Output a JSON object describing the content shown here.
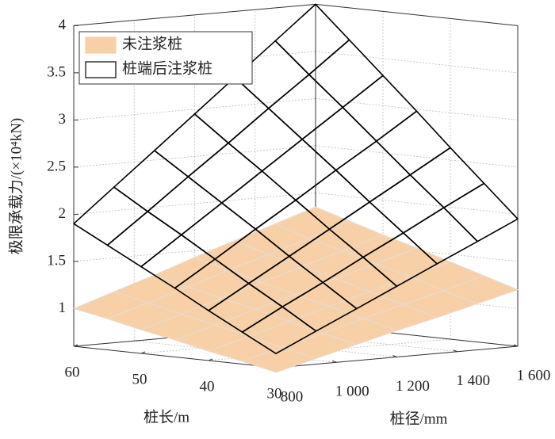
{
  "chart_data": {
    "type": "surface",
    "x_label": "桩径/mm",
    "y_label": "桩长/m",
    "z_label": "极限承载力/(×10⁴kN)",
    "x": [
      800,
      933,
      1067,
      1200,
      1333,
      1467,
      1600
    ],
    "y": [
      30,
      35,
      40,
      45,
      50,
      55,
      60
    ],
    "xlim": [
      800,
      1600
    ],
    "ylim": [
      30,
      60
    ],
    "zlim": [
      0.6,
      4
    ],
    "xticks": [
      800,
      {
        "value": 1000,
        "label": "1 000"
      },
      {
        "value": 1200,
        "label": "1 200"
      },
      {
        "value": 1400,
        "label": "1 400"
      },
      {
        "value": 1600,
        "label": "1 600"
      }
    ],
    "yticks": [
      30,
      40,
      50,
      60
    ],
    "zticks": [
      1,
      1.5,
      2,
      2.5,
      3,
      3.5,
      4
    ],
    "grid": true,
    "legend": "upper left",
    "series": [
      {
        "name": "未注浆桩",
        "style": "surface",
        "color": "#f8d0a8",
        "edge_color": "#e6dcd2",
        "z": [
          [
            0.55,
            0.66,
            0.77,
            0.88,
            0.98,
            1.09,
            1.2
          ],
          [
            0.63,
            0.74,
            0.85,
            0.97,
            1.08,
            1.19,
            1.31
          ],
          [
            0.7,
            0.82,
            0.94,
            1.06,
            1.18,
            1.3,
            1.42
          ],
          [
            0.78,
            0.9,
            1.03,
            1.15,
            1.28,
            1.4,
            1.53
          ],
          [
            0.85,
            0.98,
            1.11,
            1.24,
            1.37,
            1.5,
            1.63
          ],
          [
            0.93,
            1.06,
            1.19,
            1.33,
            1.46,
            1.59,
            1.74
          ],
          [
            1.0,
            1.14,
            1.28,
            1.43,
            1.57,
            1.71,
            1.85
          ]
        ]
      },
      {
        "name": "桩端后注浆桩",
        "style": "wireframe",
        "color": "#000000",
        "z": [
          [
            0.75,
            0.95,
            1.15,
            1.35,
            1.55,
            1.75,
            1.95
          ],
          [
            0.94,
            1.17,
            1.39,
            1.62,
            1.84,
            2.07,
            2.29
          ],
          [
            1.13,
            1.38,
            1.63,
            1.88,
            2.13,
            2.38,
            2.63
          ],
          [
            1.33,
            1.6,
            1.88,
            2.15,
            2.43,
            2.7,
            2.98
          ],
          [
            1.52,
            1.82,
            2.12,
            2.42,
            2.72,
            3.02,
            3.32
          ],
          [
            1.71,
            2.03,
            2.36,
            2.68,
            3.01,
            3.33,
            3.66
          ],
          [
            1.9,
            2.25,
            2.6,
            2.95,
            3.3,
            3.65,
            4.0
          ]
        ]
      }
    ]
  }
}
